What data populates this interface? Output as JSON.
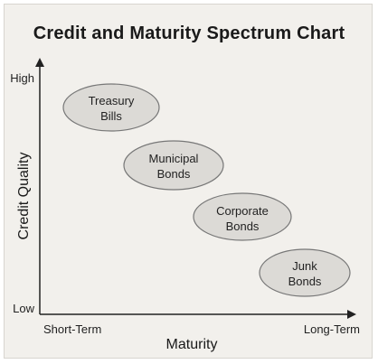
{
  "title": "Credit and Maturity Spectrum Chart",
  "axes": {
    "y_title": "Credit Quality",
    "x_title": "Maturity",
    "y_high": "High",
    "y_low": "Low",
    "x_short": "Short-Term",
    "x_long": "Long-Term"
  },
  "nodes": [
    {
      "line1": "Treasury",
      "line2": "Bills"
    },
    {
      "line1": "Municipal",
      "line2": "Bonds"
    },
    {
      "line1": "Corporate",
      "line2": "Bonds"
    },
    {
      "line1": "Junk",
      "line2": "Bonds"
    }
  ],
  "colors": {
    "node_fill": "#dcdad6",
    "node_stroke": "#777777",
    "axis": "#222222",
    "background": "#f2f0ec"
  }
}
